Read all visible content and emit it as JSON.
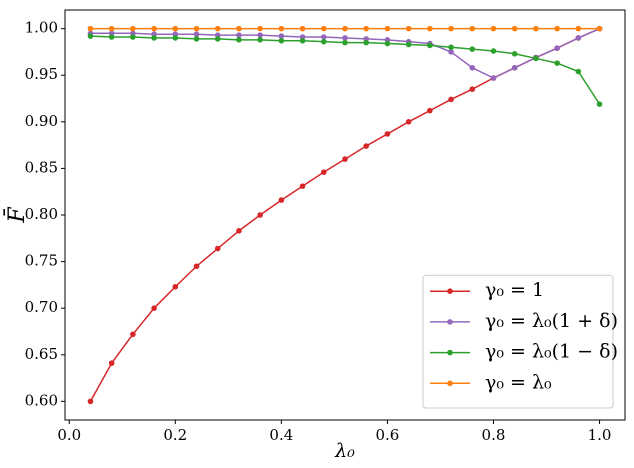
{
  "chart_data": {
    "type": "line",
    "xlabel": "λ₀",
    "ylabel": "F̄",
    "x": [
      0.04,
      0.08,
      0.12,
      0.16,
      0.2,
      0.24,
      0.28,
      0.32,
      0.36,
      0.4,
      0.44,
      0.48,
      0.52,
      0.56,
      0.6,
      0.64,
      0.68,
      0.72,
      0.76,
      0.8,
      0.84,
      0.88,
      0.92,
      0.96,
      1.0
    ],
    "series": [
      {
        "name": "γ₀ = 1",
        "color": "#d62728",
        "values": [
          0.6,
          0.641,
          0.672,
          0.7,
          0.723,
          0.745,
          0.764,
          0.783,
          0.8,
          0.816,
          0.831,
          0.846,
          0.86,
          0.874,
          0.887,
          0.9,
          0.912,
          0.924,
          0.935,
          0.947,
          0.958,
          0.969,
          0.979,
          0.99,
          1.0
        ]
      },
      {
        "name": "γ₀ = λ₀(1 + δ)",
        "color": "#9467bd",
        "values": [
          0.995,
          0.995,
          0.995,
          0.994,
          0.994,
          0.994,
          0.993,
          0.993,
          0.993,
          0.992,
          0.991,
          0.991,
          0.99,
          0.989,
          0.988,
          0.986,
          0.984,
          0.975,
          0.958,
          0.947,
          0.958,
          0.969,
          0.979,
          0.99,
          1.0
        ]
      },
      {
        "name": "γ₀ = λ₀(1 − δ)",
        "color": "#2ca02c",
        "values": [
          0.992,
          0.991,
          0.991,
          0.99,
          0.99,
          0.989,
          0.989,
          0.988,
          0.988,
          0.987,
          0.987,
          0.986,
          0.985,
          0.985,
          0.984,
          0.983,
          0.982,
          0.98,
          0.978,
          0.976,
          0.973,
          0.968,
          0.963,
          0.954,
          0.919
        ]
      },
      {
        "name": "γ₀ = λ₀",
        "color": "#ff7f0e",
        "values": [
          1.0,
          1.0,
          1.0,
          1.0,
          1.0,
          1.0,
          1.0,
          1.0,
          1.0,
          1.0,
          1.0,
          1.0,
          1.0,
          1.0,
          1.0,
          1.0,
          1.0,
          1.0,
          1.0,
          1.0,
          1.0,
          1.0,
          1.0,
          1.0,
          1.0
        ]
      }
    ],
    "xlim": [
      -0.008,
      1.048
    ],
    "ylim": [
      0.58,
      1.02
    ],
    "xticks": [
      {
        "value": 0,
        "label": "0.0"
      },
      0.2,
      0.4,
      0.6,
      0.8,
      {
        "value": 1,
        "label": "1.0"
      }
    ],
    "yticks": [
      {
        "value": 0.6,
        "label": "0.60"
      },
      {
        "value": 0.65,
        "label": "0.65"
      },
      {
        "value": 0.7,
        "label": "0.70"
      },
      {
        "value": 0.75,
        "label": "0.75"
      },
      {
        "value": 0.8,
        "label": "0.80"
      },
      {
        "value": 0.85,
        "label": "0.85"
      },
      {
        "value": 0.9,
        "label": "0.90"
      },
      {
        "value": 0.95,
        "label": "0.95"
      },
      {
        "value": 1.0,
        "label": "1.00"
      }
    ],
    "legend": "lower right"
  }
}
